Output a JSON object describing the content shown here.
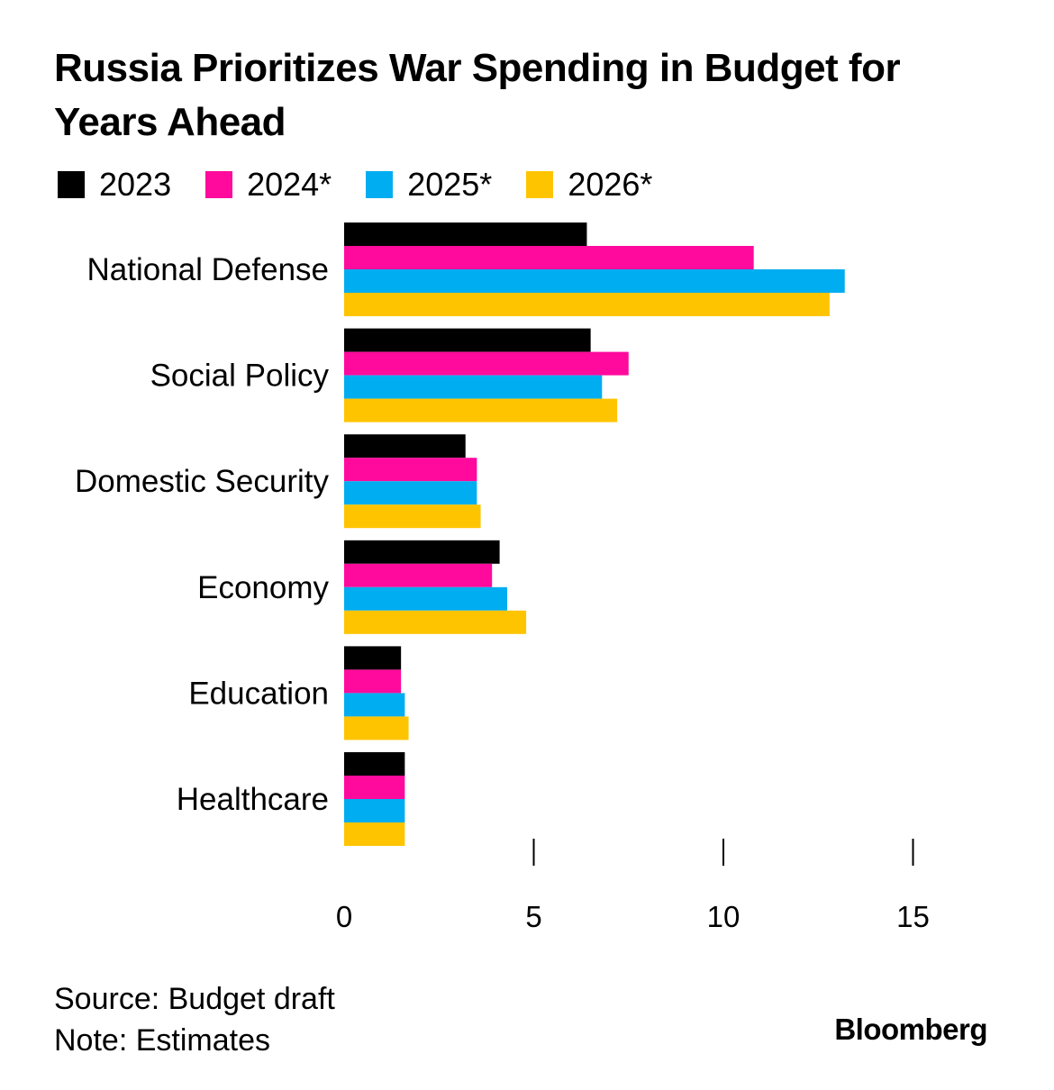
{
  "title": "Russia Prioritizes War Spending in Budget for Years Ahead",
  "legend": [
    {
      "label": "2023",
      "color": "#000000"
    },
    {
      "label": "2024*",
      "color": "#ff0a9c"
    },
    {
      "label": "2025*",
      "color": "#00adf0"
    },
    {
      "label": "2026*",
      "color": "#ffc400"
    }
  ],
  "chart_data": {
    "type": "bar",
    "orientation": "horizontal",
    "title": "Russia Prioritizes War Spending in Budget for Years Ahead",
    "categories": [
      "National Defense",
      "Social Policy",
      "Domestic Security",
      "Economy",
      "Education",
      "Healthcare"
    ],
    "series": [
      {
        "name": "2023",
        "color": "#000000",
        "values": [
          6.4,
          6.5,
          3.2,
          4.1,
          1.5,
          1.6
        ]
      },
      {
        "name": "2024*",
        "color": "#ff0a9c",
        "values": [
          10.8,
          7.5,
          3.5,
          3.9,
          1.5,
          1.6
        ]
      },
      {
        "name": "2025*",
        "color": "#00adf0",
        "values": [
          13.2,
          6.8,
          3.5,
          4.3,
          1.6,
          1.6
        ]
      },
      {
        "name": "2026*",
        "color": "#ffc400",
        "values": [
          12.8,
          7.2,
          3.6,
          4.8,
          1.7,
          1.6
        ]
      }
    ],
    "x_ticks": [
      0,
      5,
      10,
      15
    ],
    "xlim": [
      0,
      15
    ],
    "xlabel": "",
    "ylabel": "",
    "grid": false,
    "legend_position": "top-left"
  },
  "footer": {
    "source": "Source: Budget draft",
    "note": "Note: Estimates"
  },
  "brand": "Bloomberg"
}
